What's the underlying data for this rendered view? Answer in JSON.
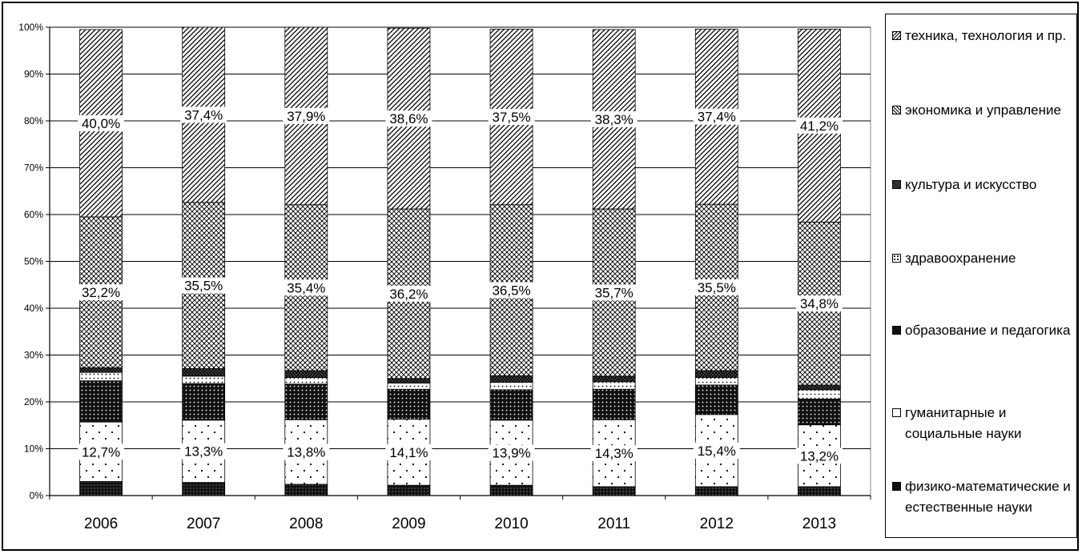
{
  "chart_data": {
    "type": "bar",
    "stacked": true,
    "percent": true,
    "categories": [
      "2006",
      "2007",
      "2008",
      "2009",
      "2010",
      "2011",
      "2012",
      "2013"
    ],
    "yticks": [
      "0%",
      "10%",
      "20%",
      "30%",
      "40%",
      "50%",
      "60%",
      "70%",
      "80%",
      "90%",
      "100%"
    ],
    "ylim": [
      0,
      100
    ],
    "grid": true,
    "legend_position": "right",
    "series": [
      {
        "name": "физико-математические и естественные науки",
        "values": [
          3.0,
          2.8,
          2.4,
          2.2,
          2.2,
          1.9,
          1.9,
          1.9
        ],
        "pattern": "dense-dots"
      },
      {
        "name": "гуманитарные и социальные науки",
        "values": [
          12.7,
          13.3,
          13.8,
          14.1,
          13.9,
          14.3,
          15.4,
          13.2
        ],
        "pattern": "sparse-dots",
        "labels": [
          "12,7%",
          "13,3%",
          "13,8%",
          "14,1%",
          "13,9%",
          "14,3%",
          "15,4%",
          "13,2%"
        ]
      },
      {
        "name": "образование и педагогика",
        "values": [
          8.8,
          7.8,
          7.6,
          6.4,
          6.5,
          6.5,
          6.3,
          5.5
        ],
        "pattern": "black-dots"
      },
      {
        "name": "здравоохранение",
        "values": [
          1.8,
          1.6,
          1.4,
          1.3,
          1.6,
          1.6,
          1.6,
          2.0
        ],
        "pattern": "light-dots"
      },
      {
        "name": "культура и искусство",
        "values": [
          1.0,
          1.6,
          1.5,
          1.0,
          1.4,
          1.2,
          1.5,
          1.0
        ],
        "pattern": "crosshatch-dark"
      },
      {
        "name": "экономика и управление",
        "values": [
          32.2,
          35.5,
          35.4,
          36.2,
          36.5,
          35.7,
          35.5,
          34.8
        ],
        "pattern": "crosshatch",
        "labels": [
          "32,2%",
          "35,5%",
          "35,4%",
          "36,2%",
          "36,5%",
          "35,7%",
          "35,5%",
          "34,8%"
        ]
      },
      {
        "name": "техника, технология и пр.",
        "values": [
          40.0,
          37.4,
          37.9,
          38.6,
          37.5,
          38.3,
          37.4,
          41.2
        ],
        "pattern": "diagonal",
        "labels": [
          "40,0%",
          "37,4%",
          "37,9%",
          "38,6%",
          "37,5%",
          "38,3%",
          "37,4%",
          "41,2%"
        ]
      }
    ]
  },
  "legend": {
    "items": [
      {
        "label": "техника, технология и пр."
      },
      {
        "label": "экономика и управление"
      },
      {
        "label": "культура и искусство"
      },
      {
        "label": "здравоохранение"
      },
      {
        "label": "образование и педагогика"
      },
      {
        "label": "гуманитарные и социальные науки"
      },
      {
        "label": "физико-математические и естественные науки"
      }
    ]
  }
}
